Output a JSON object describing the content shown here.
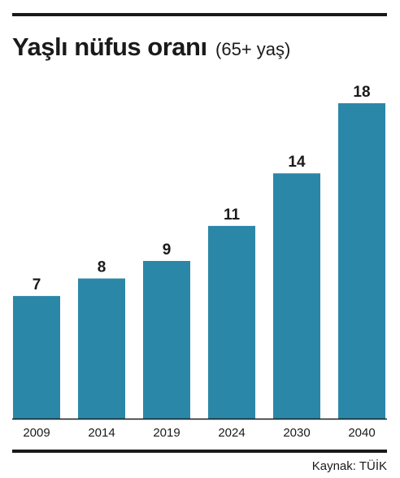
{
  "title": "Yaşlı nüfus oranı",
  "subtitle": "(65+ yaş)",
  "source": "Kaynak: TÜİK",
  "colors": {
    "bar": "#2b87a8",
    "text": "#1a1a1a",
    "axis": "#1a1a1a"
  },
  "chart_data": {
    "type": "bar",
    "categories": [
      "2009",
      "2014",
      "2019",
      "2024",
      "2030",
      "2040"
    ],
    "values": [
      7,
      8,
      9,
      11,
      14,
      18
    ],
    "ylim": [
      0,
      18
    ],
    "grid": false
  }
}
